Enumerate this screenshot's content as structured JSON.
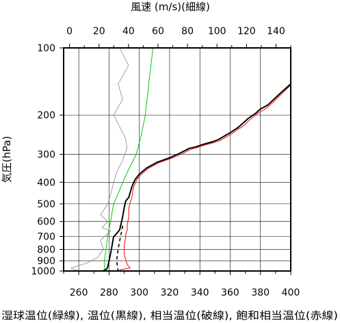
{
  "chart_data": {
    "type": "line",
    "y_scale": "log",
    "grid": true,
    "ylabel": "気圧(hPa)",
    "top_xlabel": "風速 (m/s)(細線)",
    "caption": "湿球温位(緑線), 温位(黒線), 相当温位(破線), 飽和相当温位(赤線)",
    "yticks": [
      100,
      200,
      300,
      400,
      500,
      600,
      700,
      800,
      900,
      1000
    ],
    "y_tick_labels": [
      "100",
      "200",
      "300",
      "400",
      "500",
      "600",
      "700",
      "800",
      "900",
      "1000"
    ],
    "ylim": [
      100,
      1000
    ],
    "bottom_axis": {
      "unit": "K",
      "xlim": [
        250,
        400
      ],
      "ticks": [
        260,
        280,
        300,
        320,
        340,
        360,
        380,
        400
      ],
      "tick_labels": [
        "260",
        "280",
        "300",
        "320",
        "340",
        "360",
        "380",
        "400"
      ]
    },
    "top_axis": {
      "unit": "m/s",
      "xlim": [
        -4,
        150
      ],
      "ticks": [
        0,
        20,
        40,
        60,
        80,
        100,
        120,
        140
      ],
      "tick_labels": [
        "0",
        "20",
        "40",
        "60",
        "80",
        "100",
        "120",
        "140"
      ]
    },
    "series": [
      {
        "name": "湿球温位",
        "axis": "bottom",
        "color": "#00cc00",
        "dash": "solid",
        "width": 1,
        "points": [
          [
            309,
            100
          ],
          [
            306,
            150
          ],
          [
            304,
            200
          ],
          [
            301,
            250
          ],
          [
            298,
            300
          ],
          [
            293,
            350
          ],
          [
            289,
            400
          ],
          [
            286,
            450
          ],
          [
            283,
            500
          ],
          [
            281,
            600
          ],
          [
            279,
            700
          ],
          [
            278,
            800
          ],
          [
            277,
            900
          ],
          [
            277,
            1000
          ]
        ]
      },
      {
        "name": "温位",
        "axis": "bottom",
        "color": "#000000",
        "dash": "solid",
        "width": 2,
        "points": [
          [
            400,
            145
          ],
          [
            393,
            160
          ],
          [
            385,
            180
          ],
          [
            380,
            188
          ],
          [
            377,
            196
          ],
          [
            372,
            207
          ],
          [
            367,
            222
          ],
          [
            365,
            228
          ],
          [
            360,
            240
          ],
          [
            352,
            258
          ],
          [
            348,
            264
          ],
          [
            342,
            271
          ],
          [
            337,
            278
          ],
          [
            333,
            282
          ],
          [
            327,
            296
          ],
          [
            320,
            311
          ],
          [
            312,
            325
          ],
          [
            305,
            345
          ],
          [
            300,
            368
          ],
          [
            297,
            391
          ],
          [
            295,
            421
          ],
          [
            293,
            468
          ],
          [
            291,
            486
          ],
          [
            290,
            521
          ],
          [
            289,
            572
          ],
          [
            288,
            612
          ],
          [
            287,
            654
          ],
          [
            285,
            680
          ],
          [
            283,
            702
          ],
          [
            282,
            769
          ],
          [
            281,
            837
          ],
          [
            279,
            969
          ],
          [
            278,
            984
          ],
          [
            276,
            1000
          ]
        ]
      },
      {
        "name": "相当温位",
        "axis": "bottom",
        "color": "#000000",
        "dash": "dashed",
        "width": 1.6,
        "points": [
          [
            289,
            627
          ],
          [
            288,
            680
          ],
          [
            287,
            733
          ],
          [
            286,
            800
          ],
          [
            285,
            900
          ],
          [
            286,
            1000
          ]
        ]
      },
      {
        "name": "飽和相当温位",
        "axis": "bottom",
        "color": "#ff0000",
        "dash": "solid",
        "width": 1,
        "points": [
          [
            400,
            147
          ],
          [
            393,
            163
          ],
          [
            385,
            184
          ],
          [
            382,
            190
          ],
          [
            379,
            195
          ],
          [
            373,
            210
          ],
          [
            368,
            226
          ],
          [
            365,
            232
          ],
          [
            361,
            243
          ],
          [
            353,
            261
          ],
          [
            349,
            266
          ],
          [
            343,
            273
          ],
          [
            338,
            280
          ],
          [
            334,
            285
          ],
          [
            328,
            299
          ],
          [
            321,
            313
          ],
          [
            313,
            327
          ],
          [
            306,
            347
          ],
          [
            301,
            370
          ],
          [
            298,
            393
          ],
          [
            296,
            425
          ],
          [
            295,
            472
          ],
          [
            294,
            490
          ],
          [
            293,
            525
          ],
          [
            293,
            576
          ],
          [
            292,
            616
          ],
          [
            292,
            658
          ],
          [
            291,
            684
          ],
          [
            291,
            706
          ],
          [
            290,
            773
          ],
          [
            290,
            841
          ],
          [
            292,
            935
          ],
          [
            294,
            970
          ],
          [
            288,
            985
          ],
          [
            286,
            1000
          ]
        ]
      },
      {
        "name": "風速",
        "axis": "top",
        "color": "#888888",
        "dash": "solid",
        "width": 0.8,
        "points": [
          [
            34,
            100
          ],
          [
            40,
            120
          ],
          [
            33,
            145
          ],
          [
            36,
            170
          ],
          [
            30,
            200
          ],
          [
            38,
            255
          ],
          [
            39,
            280
          ],
          [
            36,
            320
          ],
          [
            32,
            360
          ],
          [
            30,
            400
          ],
          [
            28,
            450
          ],
          [
            26,
            500
          ],
          [
            21,
            560
          ],
          [
            26,
            600
          ],
          [
            22,
            640
          ],
          [
            28,
            660
          ],
          [
            21,
            730
          ],
          [
            23,
            800
          ],
          [
            19,
            870
          ],
          [
            12,
            920
          ],
          [
            1,
            970
          ],
          [
            6,
            1000
          ]
        ]
      }
    ]
  }
}
